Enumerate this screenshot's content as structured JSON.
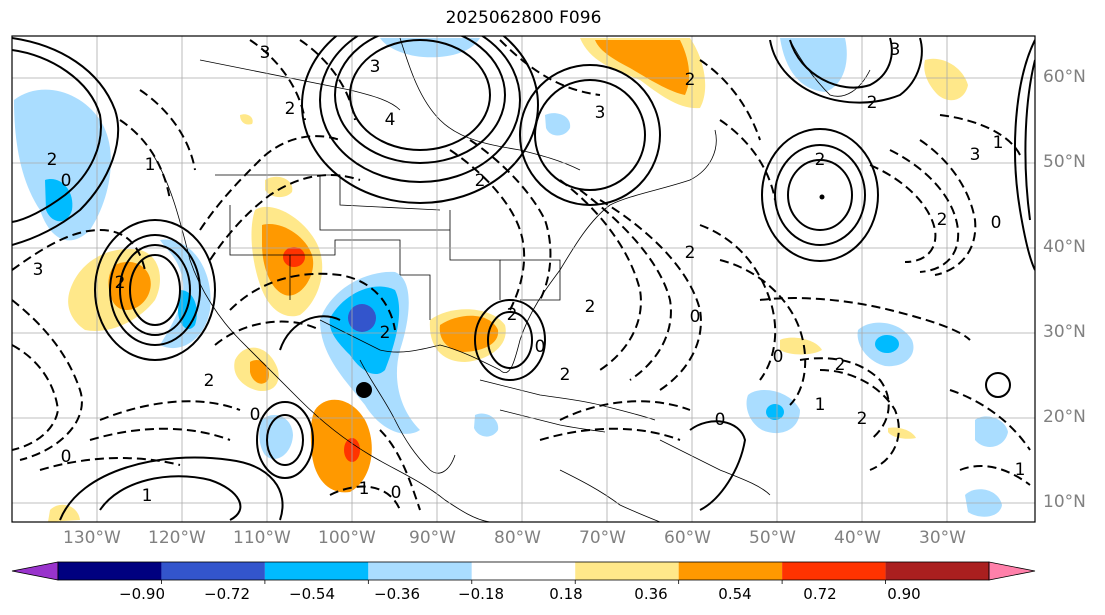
{
  "title": "2025062800 F096",
  "lat_labels": [
    "60°N",
    "50°N",
    "40°N",
    "30°N",
    "20°N",
    "10°N"
  ],
  "lon_labels": [
    "130°W",
    "120°W",
    "110°W",
    "100°W",
    "90°W",
    "80°W",
    "70°W",
    "60°W",
    "50°W",
    "40°W",
    "30°W"
  ],
  "colorbar": {
    "ticks": [
      "−0.90",
      "−0.72",
      "−0.54",
      "−0.36",
      "−0.18",
      "0.18",
      "0.36",
      "0.54",
      "0.72",
      "0.90"
    ],
    "colors": [
      "#9933cc",
      "#000080",
      "#3355cc",
      "#00bbff",
      "#aaddff",
      "#ffffff",
      "#ffe88a",
      "#ff9900",
      "#ff3300",
      "#aa1f1f",
      "#ff80aa"
    ]
  },
  "contour_labels": [
    "3",
    "2",
    "2",
    "0",
    "1",
    "3",
    "2",
    "3",
    "2",
    "4",
    "3",
    "2",
    "3",
    "2",
    "2",
    "3",
    "2",
    "1",
    "0",
    "2",
    "2",
    "2",
    "1",
    "0",
    "0",
    "0",
    "2",
    "2",
    "2",
    "0",
    "2",
    "1",
    "0",
    "2",
    "0",
    "1",
    "0",
    "1"
  ],
  "marker": "storm-center-dot"
}
